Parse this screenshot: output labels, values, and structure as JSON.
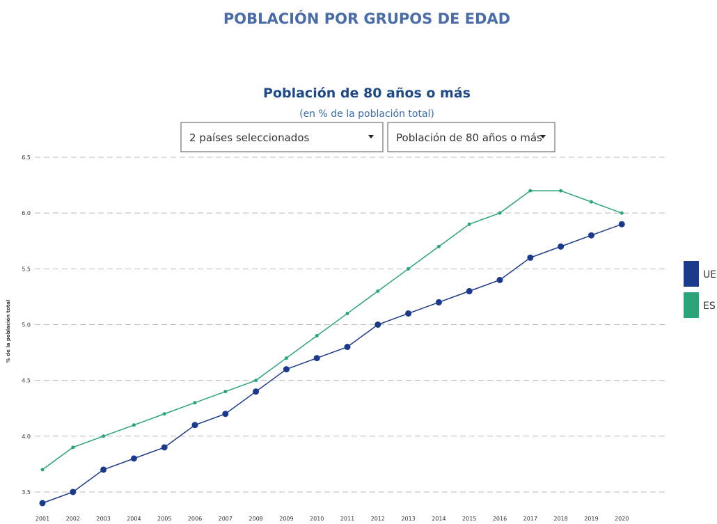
{
  "header": {
    "title": "POBLACIÓN POR GRUPOS DE EDAD"
  },
  "controls": {
    "countries": "2 países seleccionados",
    "indicator": "Población de 80 años o más"
  },
  "chart_data": {
    "type": "line",
    "title": "Población de 80 años o más",
    "subtitle": "(en % de la población total)",
    "y_label": "% de la población total",
    "categories": [
      "2001",
      "2002",
      "2003",
      "2004",
      "2005",
      "2006",
      "2007",
      "2008",
      "2009",
      "2010",
      "2011",
      "2012",
      "2013",
      "2014",
      "2015",
      "2016",
      "2017",
      "2018",
      "2019",
      "2020"
    ],
    "series": [
      {
        "name": "UE",
        "color": "#1b3a8c",
        "values": [
          3.4,
          3.5,
          3.7,
          3.8,
          3.9,
          4.1,
          4.2,
          4.4,
          4.6,
          4.7,
          4.8,
          5.0,
          5.1,
          5.2,
          5.3,
          5.4,
          5.6,
          5.7,
          5.8,
          5.9
        ]
      },
      {
        "name": "ES",
        "color": "#2aa57a",
        "values": [
          3.7,
          3.9,
          4.0,
          4.1,
          4.2,
          4.3,
          4.4,
          4.5,
          4.7,
          4.9,
          5.1,
          5.3,
          5.5,
          5.7,
          5.9,
          6.0,
          6.2,
          6.2,
          6.1,
          6.0
        ]
      }
    ],
    "ylim": [
      3.4,
      6.5
    ],
    "yticks": [
      3.5,
      {
        "value": 4,
        "label": "4.0"
      },
      4.5,
      {
        "value": 5,
        "label": "5.0"
      },
      5.5,
      {
        "value": 6,
        "label": "6.0"
      },
      6.5
    ],
    "grid": true,
    "legend": "right"
  }
}
